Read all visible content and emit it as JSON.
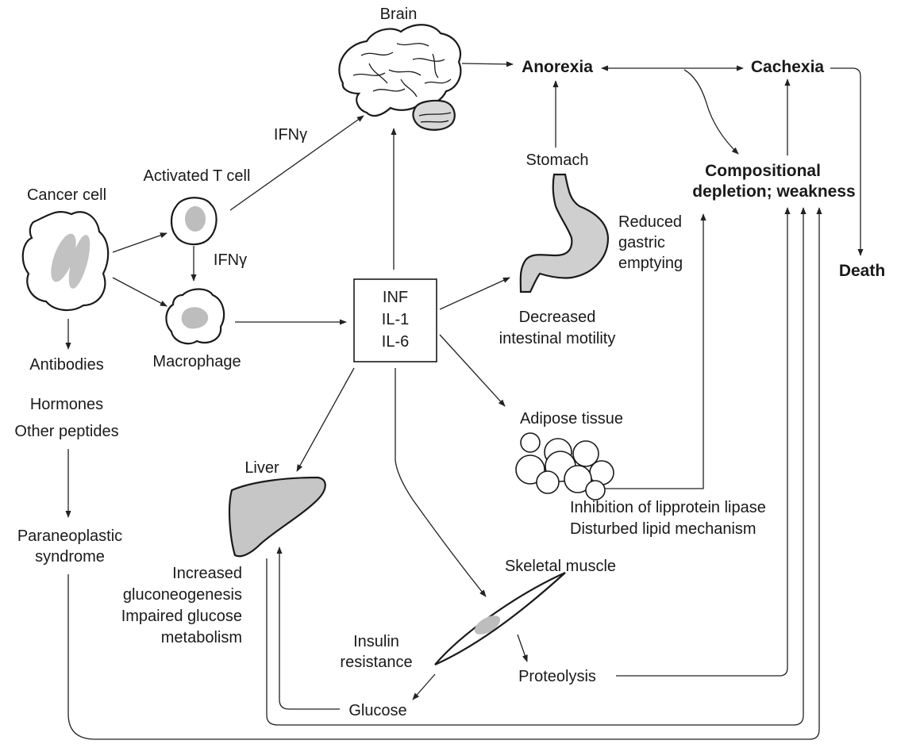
{
  "labels": {
    "brain": "Brain",
    "anorexia": "Anorexia",
    "cachexia": "Cachexia",
    "ifn_top": "IFNγ",
    "activated_t_cell": "Activated T cell",
    "cancer_cell": "Cancer cell",
    "ifn_mid": "IFNγ",
    "macrophage": "Macrophage",
    "antibodies": "Antibodies",
    "hormones": "Hormones",
    "other_peptides": "Other peptides",
    "paraneoplastic_1": "Paraneoplastic",
    "paraneoplastic_2": "syndrome",
    "cytokine_1": "INF",
    "cytokine_2": "IL-1",
    "cytokine_3": "IL-6",
    "stomach": "Stomach",
    "reduced_1": "Reduced",
    "reduced_2": "gastric",
    "reduced_3": "emptying",
    "decreased_1": "Decreased",
    "decreased_2": "intestinal motility",
    "compositional_1": "Compositional",
    "compositional_2": "depletion; weakness",
    "death": "Death",
    "adipose": "Adipose tissue",
    "lipoprotein_1": "Inhibition of lipprotein lipase",
    "lipoprotein_2": "Disturbed lipid mechanism",
    "liver": "Liver",
    "liver_effect_1": "Increased",
    "liver_effect_2": "gluconeogenesis",
    "liver_effect_3": "Impaired glucose",
    "liver_effect_4": "metabolism",
    "skeletal_muscle": "Skeletal muscle",
    "insulin_1": "Insulin",
    "insulin_2": "resistance",
    "proteolysis": "Proteolysis",
    "glucose": "Glucose"
  },
  "colors": {
    "line": "#222222",
    "organ_fill": "#c9c9c9",
    "organ_fill_light": "#d8d8d8",
    "background": "#ffffff"
  }
}
